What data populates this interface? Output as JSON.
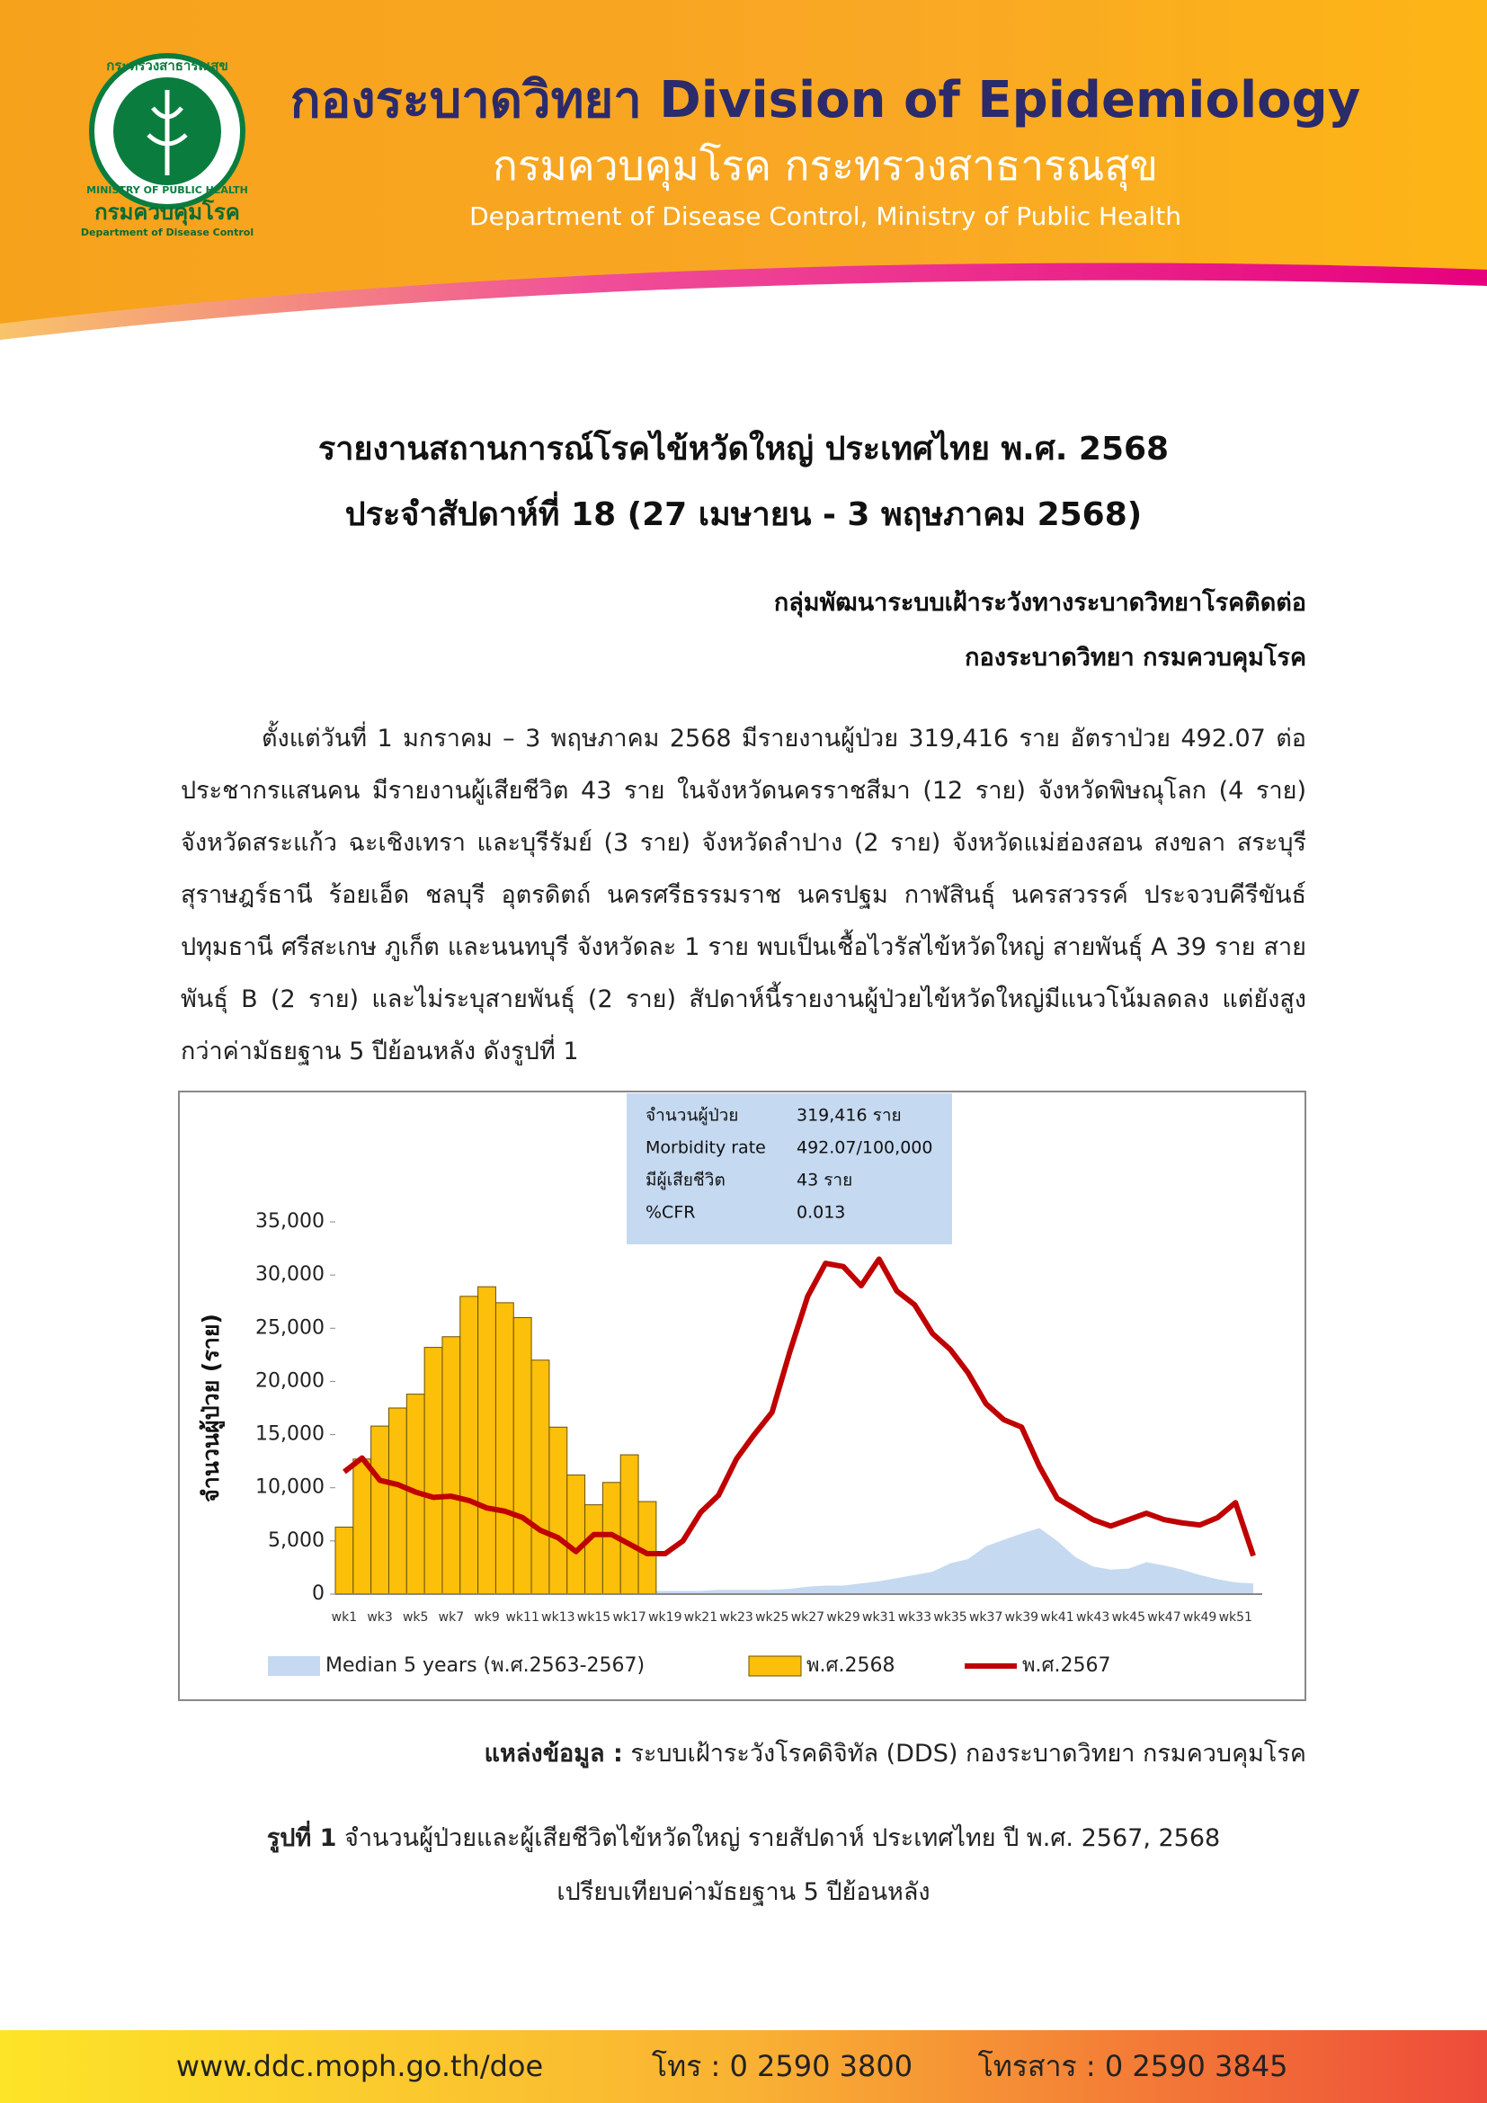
{
  "header": {
    "title": "กองระบาดวิทยา Division of Epidemiology",
    "dept_thai": "กรมควบคุมโรค กระทรวงสาธารณสุข",
    "dept_en": "Department of Disease Control, Ministry of Public Health",
    "logo": {
      "arc_thai": "กระทรวงสาธารณสุข",
      "ministry": "MINISTRY OF PUBLIC HEALTH",
      "name_thai": "กรมควบคุมโรค",
      "name_en": "Department of Disease Control"
    }
  },
  "report": {
    "title": [
      "รายงานสถานการณ์โรคไข้หวัดใหญ่ ประเทศไทย พ.ศ. 2568",
      "ประจำสัปดาห์ที่ 18 (27 เมษายน - 3 พฤษภาคม 2568)"
    ],
    "authors": [
      "กลุ่มพัฒนาระบบเฝ้าระวังทางระบาดวิทยาโรคติดต่อ",
      "กองระบาดวิทยา กรมควบคุมโรค"
    ],
    "paragraph": "ตั้งแต่วันที่ 1 มกราคม – 3 พฤษภาคม 2568 มีรายงานผู้ป่วย 319,416 ราย อัตราป่วย 492.07 ต่อประชากรแสนคน มีรายงานผู้เสียชีวิต 43 ราย ในจังหวัดนครราชสีมา (12 ราย) จังหวัดพิษณุโลก (4 ราย) จังหวัดสระแก้ว ฉะเชิงเทรา และบุรีรัมย์ (3 ราย) จังหวัดลำปาง (2 ราย) จังหวัดแม่ฮ่องสอน สงขลา สระบุรี สุราษฎร์ธานี ร้อยเอ็ด ชลบุรี อุตรดิตถ์ นครศรีธรรมราช นครปฐม กาฬสินธุ์ นครสวรรค์ ประจวบคีรีขันธ์ ปทุมธานี ศรีสะเกษ ภูเก็ต และนนทบุรี จังหวัดละ 1 ราย พบเป็นเชื้อไวรัสไข้หวัดใหญ่ สายพันธุ์ A 39 ราย สายพันธุ์ B (2 ราย) และไม่ระบุสายพันธุ์ (2 ราย) สัปดาห์นี้รายงานผู้ป่วยไข้หวัดใหญ่มีแนวโน้มลดลง แต่ยังสูงกว่าค่ามัธยฐาน 5 ปีย้อนหลัง ดังรูปที่ 1"
  },
  "chart_data": {
    "type": "combo",
    "y_label": "จำนวนผู้ป่วย (ราย)",
    "categories": [
      "wk1",
      null,
      "wk3",
      null,
      "wk5",
      null,
      "wk7",
      null,
      "wk9",
      null,
      "wk11",
      null,
      "wk13",
      null,
      "wk15",
      null,
      "wk17",
      null,
      "wk19",
      null,
      "wk21",
      null,
      "wk23",
      null,
      "wk25",
      null,
      "wk27",
      null,
      "wk29",
      null,
      "wk31",
      null,
      "wk33",
      null,
      "wk35",
      null,
      "wk37",
      null,
      "wk39",
      null,
      "wk41",
      null,
      "wk43",
      null,
      "wk45",
      null,
      "wk47",
      null,
      "wk49",
      null,
      "wk51",
      null
    ],
    "ylim": [
      0,
      35000
    ],
    "yticks": [
      0,
      {
        "value": 5000,
        "label": "5,000"
      },
      {
        "value": 10000,
        "label": "10,000"
      },
      {
        "value": 15000,
        "label": "15,000"
      },
      {
        "value": 20000,
        "label": "20,000"
      },
      {
        "value": 25000,
        "label": "25,000"
      },
      {
        "value": 30000,
        "label": "30,000"
      },
      {
        "value": 35000,
        "label": "35,000"
      }
    ],
    "grid": false,
    "series": [
      {
        "name": "Median 5 years (พ.ศ.2563-2567)",
        "type": "area",
        "color": "#c5d9f1",
        "values": [
          1500,
          1600,
          1700,
          1600,
          1500,
          1400,
          1300,
          1200,
          1100,
          1000,
          900,
          800,
          700,
          600,
          500,
          400,
          350,
          300,
          300,
          300,
          300,
          400,
          400,
          400,
          400,
          500,
          700,
          800,
          800,
          1000,
          1200,
          1500,
          1800,
          2100,
          2900,
          3300,
          4500,
          5100,
          5700,
          6200,
          5000,
          3500,
          2600,
          2300,
          2400,
          3000,
          2700,
          2300,
          1800,
          1400,
          1100,
          1000
        ]
      },
      {
        "name": "พ.ศ.2568",
        "type": "bar",
        "color": "#fcbf0a",
        "values": [
          6300,
          12700,
          15800,
          17500,
          18800,
          23200,
          24200,
          28000,
          28900,
          27400,
          26000,
          22000,
          15700,
          11200,
          8400,
          10500,
          13100,
          8700,
          null,
          null,
          null,
          null,
          null,
          null,
          null,
          null,
          null,
          null,
          null,
          null,
          null,
          null,
          null,
          null,
          null,
          null,
          null,
          null,
          null,
          null,
          null,
          null,
          null,
          null,
          null,
          null,
          null,
          null,
          null,
          null,
          null,
          null
        ]
      },
      {
        "name": "พ.ศ.2567",
        "type": "line",
        "color": "#c00000",
        "values": [
          11500,
          12800,
          10700,
          10300,
          9600,
          9100,
          9200,
          8800,
          8100,
          7800,
          7200,
          6000,
          5300,
          4000,
          5600,
          5600,
          4700,
          3800,
          3800,
          5000,
          7700,
          9300,
          12700,
          15000,
          17100,
          22800,
          28000,
          31100,
          30800,
          29000,
          31500,
          28500,
          27200,
          24500,
          23000,
          20800,
          17900,
          16400,
          15700,
          12000,
          9000,
          8000,
          7000,
          6400,
          7000,
          7600,
          7000,
          6700,
          6500,
          7200,
          8600,
          3600
        ]
      }
    ],
    "info_box": [
      {
        "label": "จำนวนผู้ป่วย",
        "value": "319,416 ราย"
      },
      {
        "label": "Morbidity rate",
        "value": "492.07/100,000"
      },
      {
        "label": "มีผู้เสียชีวิต",
        "value": "43 ราย"
      },
      {
        "label": "%CFR",
        "value": "0.013"
      }
    ]
  },
  "source": {
    "label": "แหล่งข้อมูล :",
    "text": "ระบบเฝ้าระวังโรคดิจิทัล (DDS) กองระบาดวิทยา กรมควบคุมโรค"
  },
  "caption": {
    "label": "รูปที่ 1",
    "lines": [
      "จำนวนผู้ป่วยและผู้เสียชีวิตไข้หวัดใหญ่ รายสัปดาห์ ประเทศไทย ปี พ.ศ. 2567, 2568",
      "เปรียบเทียบค่ามัธยฐาน 5 ปีย้อนหลัง"
    ]
  },
  "footer": {
    "website": "www.ddc.moph.go.th/doe",
    "phone": "โทร : 0 2590 3800",
    "fax": "โทรสาร : 0 2590 3845"
  }
}
